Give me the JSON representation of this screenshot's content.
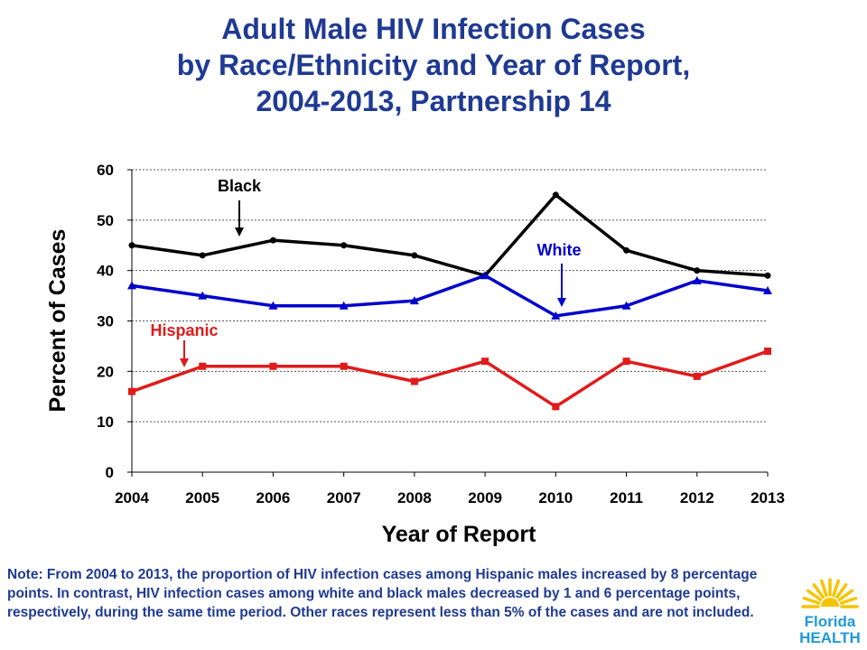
{
  "chart_data": {
    "type": "line",
    "title": [
      "Adult Male HIV Infection Cases",
      "by Race/Ethnicity and Year of Report,",
      "2004-2013, Partnership 14"
    ],
    "xlabel": "Year of Report",
    "ylabel": "Percent of Cases",
    "categories": [
      "2004",
      "2005",
      "2006",
      "2007",
      "2008",
      "2009",
      "2010",
      "2011",
      "2012",
      "2013"
    ],
    "ylim": [
      0,
      60
    ],
    "yticks": [
      0,
      10,
      20,
      30,
      40,
      50,
      60
    ],
    "grid": true,
    "series": [
      {
        "name": "Black",
        "color": "#000000",
        "marker": "circle",
        "values": [
          45,
          43,
          46,
          45,
          43,
          39,
          55,
          44,
          40,
          39
        ]
      },
      {
        "name": "White",
        "color": "#0000CC",
        "marker": "triangle",
        "values": [
          37,
          35,
          33,
          33,
          34,
          39,
          31,
          33,
          38,
          36
        ]
      },
      {
        "name": "Hispanic",
        "color": "#E01B1B",
        "marker": "square",
        "values": [
          16,
          21,
          21,
          21,
          18,
          22,
          13,
          22,
          19,
          24
        ]
      }
    ],
    "annotations": [
      {
        "text": "Black",
        "series": "Black",
        "color": "#000000"
      },
      {
        "text": "White",
        "series": "White",
        "color": "#0000CC"
      },
      {
        "text": "Hispanic",
        "series": "Hispanic",
        "color": "#E01B1B"
      }
    ]
  },
  "note": "Note: From 2004 to 2013, the proportion of HIV infection cases among Hispanic males increased by 8 percentage points.   In contrast, HIV infection cases among white and black males decreased by 1 and 6 percentage points, respectively, during the same time period.  Other races represent less than 5% of the cases and are not included.",
  "logo": {
    "line1": "Florida",
    "line2": "HEALTH",
    "sun_color": "#F5C400",
    "text_color": "#1F9AD6"
  }
}
